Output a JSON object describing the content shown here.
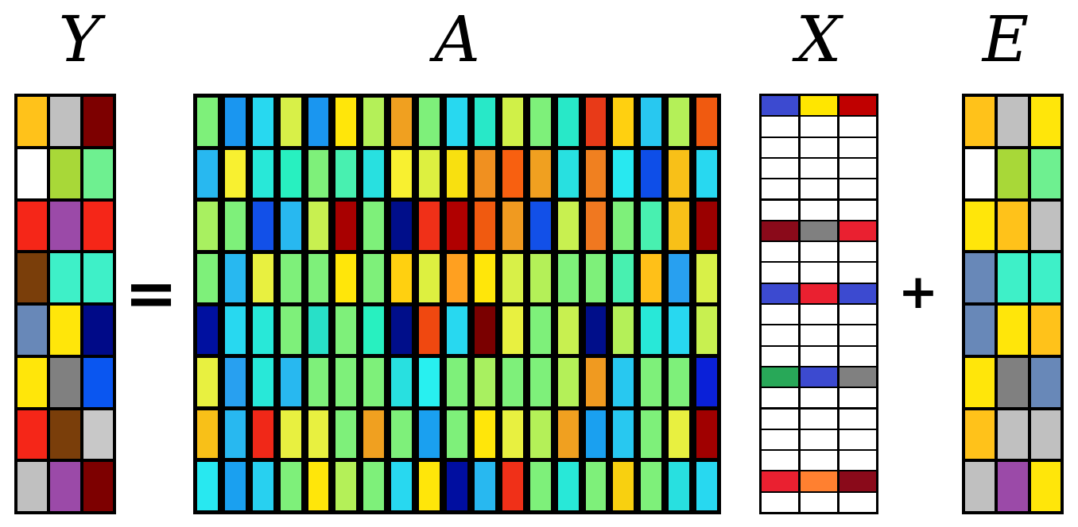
{
  "title": {
    "Y": "Y",
    "A": "A",
    "X": "X",
    "E": "E"
  },
  "operators": {
    "equals": "=",
    "plus": "+"
  },
  "Y": [
    [
      "#ffc21a",
      "#c0c0c0",
      "#7d0000"
    ],
    [
      "#ffffff",
      "#a8d838",
      "#6ef090"
    ],
    [
      "#f52618",
      "#9b4aa8",
      "#f52618"
    ],
    [
      "#7a3e0a",
      "#3ef0c8",
      "#3ef0c8"
    ],
    [
      "#6888b8",
      "#ffe60a",
      "#000a88"
    ],
    [
      "#ffe60a",
      "#808080",
      "#0a56f0"
    ],
    [
      "#f52618",
      "#7a3e0a",
      "#c8c8c8"
    ],
    [
      "#c0c0c0",
      "#9b4aa8",
      "#7d0000"
    ]
  ],
  "A": [
    [
      "#7ef07a",
      "#1a96f0",
      "#28d8f0",
      "#d8f048",
      "#1a96f0",
      "#ffe60a",
      "#b4f058",
      "#f0a020",
      "#7ef07a",
      "#28d8f0",
      "#28e8c8",
      "#d0f048",
      "#7ef07a",
      "#28e8c8",
      "#e83a18",
      "#ffd010",
      "#28c8f0",
      "#b4f058",
      "#f05a10"
    ],
    [
      "#28b8f0",
      "#f8f030",
      "#28e8d8",
      "#28f0c0",
      "#7ef07a",
      "#48f0b0",
      "#28e0e0",
      "#f8f030",
      "#ddf040",
      "#f8e010",
      "#f09020",
      "#f86010",
      "#f0a020",
      "#28e0e0",
      "#f08020",
      "#28e8f0",
      "#0e4ee8",
      "#f8c018",
      "#28d8f0"
    ],
    [
      "#a8f060",
      "#7ef07a",
      "#1250e8",
      "#28b8f0",
      "#c8f050",
      "#a80000",
      "#7ef07a",
      "#000e8a",
      "#f03018",
      "#b00000",
      "#f05a10",
      "#f09a20",
      "#1250e8",
      "#c8f050",
      "#f07820",
      "#7ef07a",
      "#48f0b0",
      "#f8c018",
      "#9a0000"
    ],
    [
      "#7ef07a",
      "#28b8f0",
      "#e8f040",
      "#7ef07a",
      "#7ef07a",
      "#ffe60a",
      "#7ef07a",
      "#ffd010",
      "#ddf040",
      "#ffa020",
      "#ffe60a",
      "#d8f048",
      "#b4f058",
      "#7ef07a",
      "#7ef07a",
      "#48f0b0",
      "#ffc018",
      "#28a0f0",
      "#d8f048"
    ],
    [
      "#0010a0",
      "#28d8f0",
      "#28e8d8",
      "#7ef07a",
      "#28e0c8",
      "#7ef07a",
      "#28f0c0",
      "#000e8a",
      "#f04810",
      "#28d8f0",
      "#7a0000",
      "#e8f040",
      "#7ef07a",
      "#c8f050",
      "#000e8a",
      "#b4f058",
      "#28e8d8",
      "#28d8f0",
      "#c8f050"
    ],
    [
      "#e8f040",
      "#28a0f0",
      "#28e8d8",
      "#28b8f0",
      "#7ef07a",
      "#7ef07a",
      "#7ef07a",
      "#28e0e0",
      "#28f0f0",
      "#7ef07a",
      "#a8f060",
      "#7ef07a",
      "#7ef07a",
      "#b4f058",
      "#f09a20",
      "#28c8f0",
      "#7ef07a",
      "#7ef07a",
      "#0a20d8"
    ],
    [
      "#f8c018",
      "#28b8f0",
      "#f02818",
      "#e8f040",
      "#e8f040",
      "#7ef07a",
      "#f0a020",
      "#7ef07a",
      "#1aa0f0",
      "#7ef07a",
      "#ffe60a",
      "#e8f040",
      "#b4f058",
      "#f0a020",
      "#1aa0f0",
      "#28c8f0",
      "#7ef07a",
      "#e8f040",
      "#a00000"
    ],
    [
      "#28e8f0",
      "#1aa0f0",
      "#28d0f0",
      "#7ef07a",
      "#ffe60a",
      "#b4f058",
      "#7ef07a",
      "#28d8f0",
      "#ffe60a",
      "#000ea0",
      "#28b8f0",
      "#f03018",
      "#7ef07a",
      "#28e8d8",
      "#7ef07a",
      "#f8d010",
      "#7ef07a",
      "#28e0e0",
      "#28d8f0"
    ]
  ],
  "X": [
    [
      "#3c4ad0",
      "#ffe600",
      "#c00000"
    ],
    [
      "#ffffff",
      "#ffffff",
      "#ffffff"
    ],
    [
      "#ffffff",
      "#ffffff",
      "#ffffff"
    ],
    [
      "#ffffff",
      "#ffffff",
      "#ffffff"
    ],
    [
      "#ffffff",
      "#ffffff",
      "#ffffff"
    ],
    [
      "#ffffff",
      "#ffffff",
      "#ffffff"
    ],
    [
      "#8a0a1a",
      "#808080",
      "#ea2030"
    ],
    [
      "#ffffff",
      "#ffffff",
      "#ffffff"
    ],
    [
      "#ffffff",
      "#ffffff",
      "#ffffff"
    ],
    [
      "#3c4ad0",
      "#ea2030",
      "#3c4ad0"
    ],
    [
      "#ffffff",
      "#ffffff",
      "#ffffff"
    ],
    [
      "#ffffff",
      "#ffffff",
      "#ffffff"
    ],
    [
      "#ffffff",
      "#ffffff",
      "#ffffff"
    ],
    [
      "#28a858",
      "#3c4ad0",
      "#808080"
    ],
    [
      "#ffffff",
      "#ffffff",
      "#ffffff"
    ],
    [
      "#ffffff",
      "#ffffff",
      "#ffffff"
    ],
    [
      "#ffffff",
      "#ffffff",
      "#ffffff"
    ],
    [
      "#ffffff",
      "#ffffff",
      "#ffffff"
    ],
    [
      "#ea2030",
      "#ff8030",
      "#8a0a1a"
    ],
    [
      "#ffffff",
      "#ffffff",
      "#ffffff"
    ]
  ],
  "E": [
    [
      "#ffc21a",
      "#c0c0c0",
      "#ffe60a"
    ],
    [
      "#ffffff",
      "#a8d838",
      "#6ef090"
    ],
    [
      "#ffe60a",
      "#ffc21a",
      "#c0c0c0"
    ],
    [
      "#6888b8",
      "#3ef0c8",
      "#3ef0c8"
    ],
    [
      "#6888b8",
      "#ffe60a",
      "#ffc21a"
    ],
    [
      "#ffe60a",
      "#808080",
      "#6888b8"
    ],
    [
      "#ffc21a",
      "#c0c0c0",
      "#c0c0c0"
    ],
    [
      "#c0c0c0",
      "#9b4aa8",
      "#ffe60a"
    ]
  ]
}
